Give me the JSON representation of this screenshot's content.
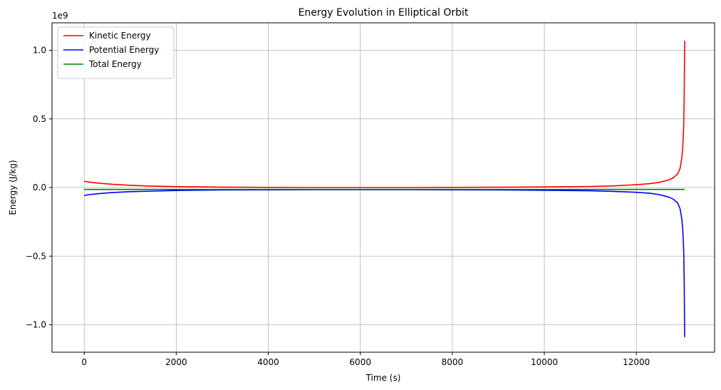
{
  "chart_data": {
    "type": "line",
    "title": "Energy Evolution in Elliptical Orbit",
    "xlabel": "Time (s)",
    "ylabel": "Energy (J/kg)",
    "offset_label": "1e9",
    "xlim": [
      -700,
      13700
    ],
    "ylim": [
      -1.2,
      1.2
    ],
    "x_ticks": [
      0,
      2000,
      4000,
      6000,
      8000,
      10000,
      12000
    ],
    "x_tick_labels": [
      "0",
      "2000",
      "4000",
      "6000",
      "8000",
      "10000",
      "12000"
    ],
    "y_ticks": [
      -1.0,
      -0.5,
      0.0,
      0.5,
      1.0
    ],
    "y_tick_labels": [
      "−1.0",
      "−0.5",
      "0.0",
      "0.5",
      "1.0"
    ],
    "grid": true,
    "legend_position": "top-left",
    "series": [
      {
        "name": "Kinetic Energy",
        "color": "#ff0000",
        "x": [
          0,
          100,
          300,
          600,
          1000,
          1500,
          2000,
          3000,
          4000,
          5000,
          6000,
          7000,
          8000,
          9000,
          10000,
          11000,
          11500,
          12000,
          12300,
          12500,
          12700,
          12800,
          12900,
          12950,
          12990,
          13010,
          13030,
          13040,
          13050
        ],
        "y": [
          0.045,
          0.04,
          0.032,
          0.024,
          0.016,
          0.01,
          0.007,
          0.003,
          0.001,
          0.0,
          0.0,
          0.0,
          0.001,
          0.002,
          0.004,
          0.008,
          0.012,
          0.02,
          0.028,
          0.038,
          0.055,
          0.07,
          0.1,
          0.14,
          0.22,
          0.3,
          0.45,
          0.7,
          1.07
        ]
      },
      {
        "name": "Potential Energy",
        "color": "#0000ff",
        "x": [
          0,
          100,
          300,
          600,
          1000,
          1500,
          2000,
          3000,
          4000,
          5000,
          6000,
          7000,
          8000,
          9000,
          10000,
          11000,
          11500,
          12000,
          12300,
          12500,
          12700,
          12800,
          12900,
          12950,
          12990,
          13010,
          13030,
          13040,
          13050
        ],
        "y": [
          -0.058,
          -0.052,
          -0.045,
          -0.037,
          -0.03,
          -0.026,
          -0.022,
          -0.018,
          -0.017,
          -0.016,
          -0.016,
          -0.016,
          -0.017,
          -0.018,
          -0.02,
          -0.024,
          -0.028,
          -0.035,
          -0.042,
          -0.052,
          -0.069,
          -0.084,
          -0.114,
          -0.155,
          -0.234,
          -0.315,
          -0.465,
          -0.715,
          -1.09
        ]
      },
      {
        "name": "Total Energy",
        "color": "#008000",
        "x": [
          0,
          13050
        ],
        "y": [
          -0.014,
          -0.014
        ]
      }
    ]
  }
}
